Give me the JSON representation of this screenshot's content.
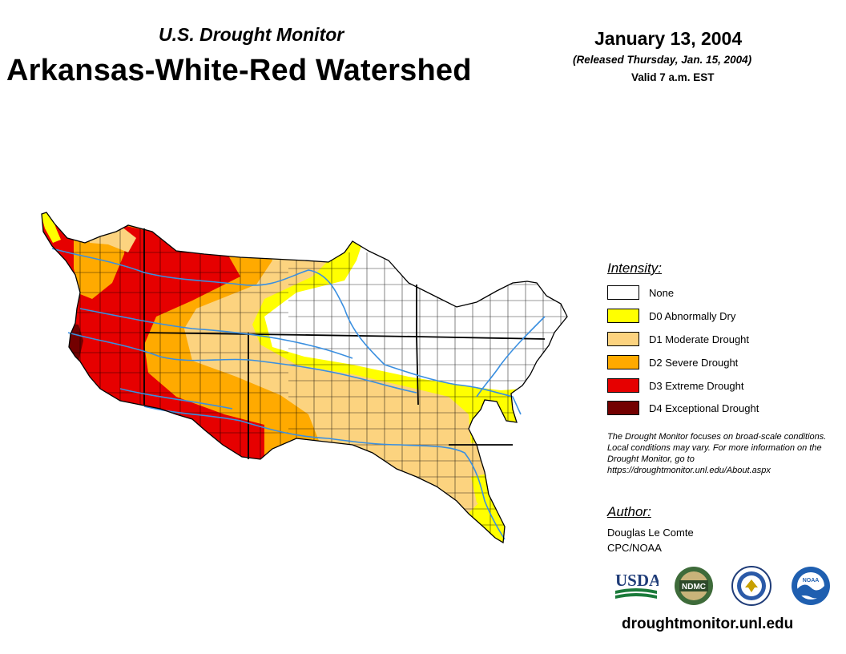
{
  "header": {
    "subtitle": "U.S. Drought Monitor",
    "title": "Arkansas-White-Red Watershed",
    "date": "January 13, 2004",
    "released": "(Released Thursday, Jan. 15, 2004)",
    "valid": "Valid 7 a.m. EST"
  },
  "legend": {
    "title": "Intensity:",
    "items": [
      {
        "label": "None",
        "color": "#ffffff"
      },
      {
        "label": "D0 Abnormally Dry",
        "color": "#ffff00"
      },
      {
        "label": "D1 Moderate Drought",
        "color": "#fcd37f"
      },
      {
        "label": "D2 Severe Drought",
        "color": "#ffaa00"
      },
      {
        "label": "D3 Extreme Drought",
        "color": "#e60000"
      },
      {
        "label": "D4 Exceptional Drought",
        "color": "#730000"
      }
    ]
  },
  "note": "The Drought Monitor focuses on broad-scale conditions. Local conditions may vary. For more information on the Drought Monitor, go to https://droughtmonitor.unl.edu/About.aspx",
  "author": {
    "title": "Author:",
    "name": "Douglas Le Comte",
    "org": "CPC/NOAA"
  },
  "logos": {
    "usda": "USDA",
    "ndmc": "NDMC",
    "noaa": "NOAA"
  },
  "url": "droughtmonitor.unl.edu",
  "colors": {
    "river": "#3a8fe0",
    "county_line": "#000000"
  }
}
